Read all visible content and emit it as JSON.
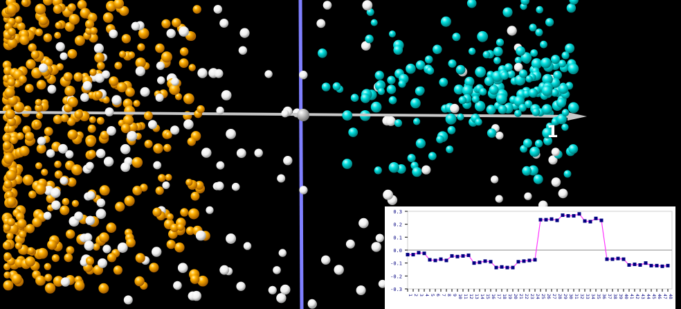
{
  "scene": {
    "axis_label": "1",
    "colors": {
      "cluster_left": "#ffa500",
      "cluster_middle": "#ffffff",
      "cluster_right": "#00e5e5",
      "horizontal_axis": "#c8c8c8",
      "vertical_axis": "#7f7fff"
    }
  },
  "chart_data": {
    "type": "line",
    "title": "",
    "xlabel": "",
    "ylabel": "",
    "ylim": [
      -0.3,
      0.3
    ],
    "yticks": [
      "0.3",
      "0.2",
      "0.1",
      "0.0",
      "-0.1",
      "-0.2",
      "-0.3"
    ],
    "ytick_values": [
      0.3,
      0.2,
      0.1,
      0.0,
      -0.1,
      -0.2,
      -0.3
    ],
    "x": [
      1,
      2,
      3,
      4,
      5,
      6,
      7,
      8,
      9,
      10,
      11,
      12,
      13,
      14,
      15,
      16,
      17,
      18,
      19,
      20,
      21,
      22,
      23,
      24,
      25,
      26,
      27,
      28,
      29,
      30,
      31,
      32,
      33,
      34,
      35,
      36,
      37,
      38,
      39,
      40,
      41,
      42,
      43,
      44,
      45,
      46,
      47,
      48
    ],
    "values": [
      -0.035,
      -0.035,
      -0.02,
      -0.025,
      -0.075,
      -0.08,
      -0.07,
      -0.08,
      -0.045,
      -0.05,
      -0.045,
      -0.04,
      -0.1,
      -0.095,
      -0.085,
      -0.09,
      -0.135,
      -0.13,
      -0.135,
      -0.135,
      -0.09,
      -0.085,
      -0.08,
      -0.075,
      0.235,
      0.235,
      0.24,
      0.23,
      0.27,
      0.265,
      0.265,
      0.28,
      0.225,
      0.22,
      0.245,
      0.23,
      -0.07,
      -0.07,
      -0.065,
      -0.07,
      -0.115,
      -0.11,
      -0.115,
      -0.1,
      -0.12,
      -0.12,
      -0.125,
      -0.12
    ],
    "zero_line": true,
    "line_color": "#ff33ff",
    "marker_color": "#000080",
    "tick_color": "#000080"
  }
}
